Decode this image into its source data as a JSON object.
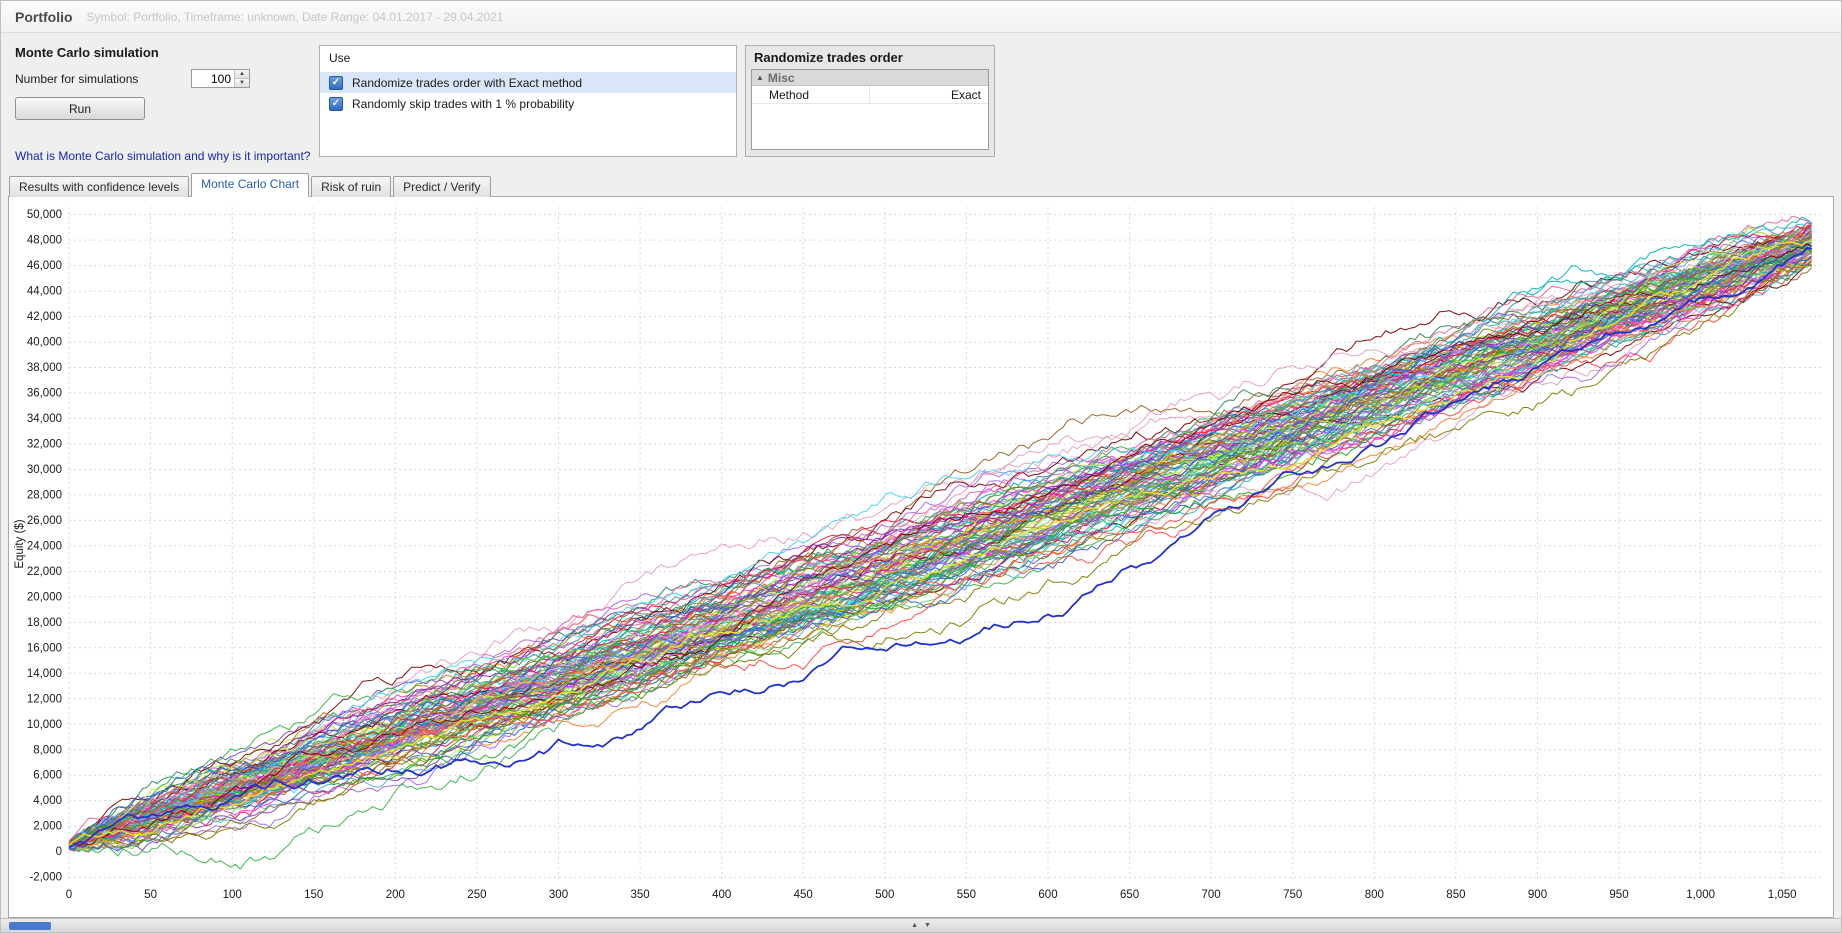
{
  "header": {
    "title": "Portfolio",
    "subtitle": "Symbol: Portfolio, Timeframe: unknown, Date Range: 04.01.2017 - 29.04.2021"
  },
  "simulation_panel": {
    "title": "Monte Carlo simulation",
    "number_label": "Number for simulations",
    "number_value": "100",
    "run_label": "Run",
    "help_link": "What is Monte Carlo simulation and why is it important?"
  },
  "use_panel": {
    "title": "Use",
    "options": [
      {
        "label": "Randomize trades order with Exact method",
        "checked": true,
        "highlighted": true
      },
      {
        "label": "Randomly skip trades with 1 % probability",
        "checked": true,
        "highlighted": false
      }
    ]
  },
  "randomize_panel": {
    "title": "Randomize trades order",
    "group": "Misc",
    "rows": [
      {
        "key": "Method",
        "value": "Exact"
      }
    ]
  },
  "tabs": [
    {
      "label": "Results with confidence levels",
      "active": false
    },
    {
      "label": "Monte Carlo Chart",
      "active": true
    },
    {
      "label": "Risk of ruin",
      "active": false
    },
    {
      "label": "Predict / Verify",
      "active": false
    }
  ],
  "chart_data": {
    "type": "line",
    "title": "",
    "xlabel": "",
    "ylabel": "Equity ($)",
    "series_description": "100 Monte Carlo simulated equity curves (randomized trade order), rising from ~0 at trade 0 to ~46,000-49,500 at trade ~1,065; one thick blue outlier curve runs ~6,000 below the bundle through the middle and converges at the end; one yellow curve runs slightly below the bundle.",
    "xlim": [
      0,
      1075
    ],
    "ylim": [
      -2300,
      50600
    ],
    "x_ticks": [
      0,
      50,
      100,
      150,
      200,
      250,
      300,
      350,
      400,
      450,
      500,
      550,
      600,
      650,
      700,
      750,
      800,
      850,
      900,
      950,
      1000,
      1050
    ],
    "y_ticks": [
      -2000,
      0,
      2000,
      4000,
      6000,
      8000,
      10000,
      12000,
      14000,
      16000,
      18000,
      20000,
      22000,
      24000,
      26000,
      28000,
      30000,
      32000,
      34000,
      36000,
      38000,
      40000,
      42000,
      44000,
      46000,
      48000,
      50000
    ],
    "grid": true,
    "grid_color": "#d9d9d9",
    "background": "#ffffff",
    "num_simulations": 100,
    "points_per_line": 356,
    "x_end": 1068,
    "start_equity_range": [
      150,
      850
    ],
    "end_equity_range": [
      45800,
      49400
    ],
    "line_palette": [
      "#3cb44b",
      "#e6194b",
      "#4363d8",
      "#f58231",
      "#911eb4",
      "#42d4f4",
      "#f032e6",
      "#bfef45",
      "#e7a0c0",
      "#469990",
      "#9a6324",
      "#808000",
      "#800000",
      "#22aa22",
      "#ff4444",
      "#2266cc",
      "#cc44cc",
      "#00b7b7",
      "#b8b800",
      "#7744cc",
      "#cc7722",
      "#338855",
      "#66dd88",
      "#dd6699",
      "#55aadd",
      "#99cc22",
      "#aa66ee",
      "#20b2aa"
    ],
    "special_lines": [
      {
        "name": "yellow-low-curve",
        "color": "#e0e032",
        "width": 1.5,
        "start": 500,
        "end": 47900,
        "sag": 3100,
        "noise": 300
      },
      {
        "name": "blue-outlier-curve",
        "color": "#2233cc",
        "width": 1.8,
        "start": 400,
        "end": 47300,
        "sag": 6500,
        "noise": 330
      }
    ]
  }
}
